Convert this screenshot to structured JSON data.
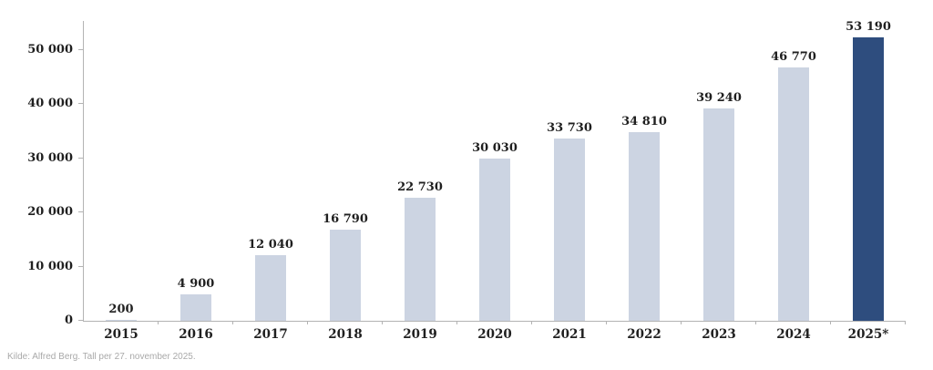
{
  "chart_data": {
    "type": "bar",
    "categories": [
      "2015",
      "2016",
      "2017",
      "2018",
      "2019",
      "2020",
      "2021",
      "2022",
      "2023",
      "2024",
      "2025*"
    ],
    "values": [
      200,
      4900,
      12040,
      16790,
      22730,
      30030,
      33730,
      34810,
      39240,
      46770,
      53190
    ],
    "value_labels": [
      "200",
      "4 900",
      "12 040",
      "16 790",
      "22 730",
      "30 030",
      "33 730",
      "34 810",
      "39 240",
      "46 770",
      "53 190"
    ],
    "highlight_index": 10,
    "title": "",
    "xlabel": "",
    "ylabel": "",
    "ylim": [
      0,
      55000
    ],
    "grid": false,
    "legend": false,
    "y_ticks": [
      {
        "value": 0,
        "label": "0"
      },
      {
        "value": 10000,
        "label": "10 000"
      },
      {
        "value": 20000,
        "label": "20 000"
      },
      {
        "value": 30000,
        "label": "30 000"
      },
      {
        "value": 40000,
        "label": "40 000"
      },
      {
        "value": 50000,
        "label": "50 000"
      }
    ],
    "colors": {
      "bar": "#ccd4e2",
      "bar_highlight": "#2e4d7e",
      "axis": "#b3b3b3",
      "text": "#1f1f1f",
      "source_text": "#a9a9a9"
    }
  },
  "source_note": "Kilde: Alfred Berg. Tall per 27. november 2025."
}
